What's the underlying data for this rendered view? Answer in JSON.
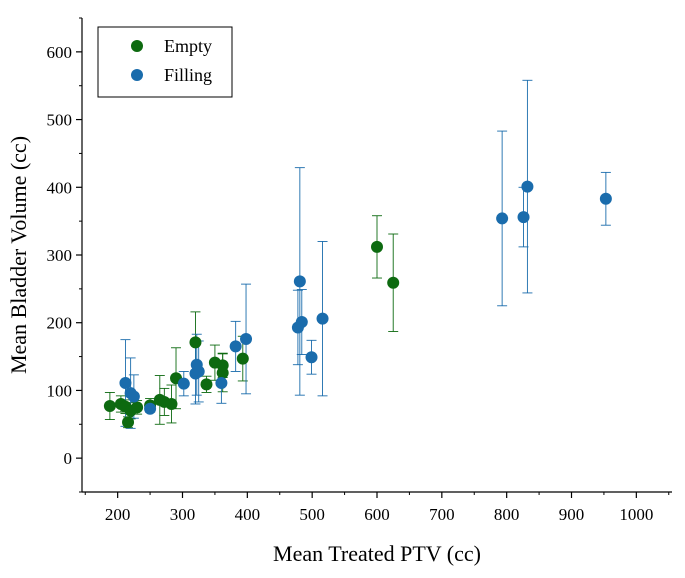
{
  "chart_data": {
    "type": "scatter",
    "title": "",
    "xlabel": "Mean Treated PTV (cc)",
    "ylabel": "Mean Bladder Volume (cc)",
    "xlim": [
      145,
      1055
    ],
    "ylim": [
      -50,
      650
    ],
    "xticks": [
      200,
      300,
      400,
      500,
      600,
      700,
      800,
      900,
      1000
    ],
    "yticks": [
      0,
      100,
      200,
      300,
      400,
      500,
      600
    ],
    "legend_position": "top-left",
    "colors": {
      "Empty": "#0d6a10",
      "Filling": "#1a6cac"
    },
    "series": [
      {
        "name": "Empty",
        "points": [
          {
            "x": 188,
            "y": 77,
            "err": 20
          },
          {
            "x": 205,
            "y": 80,
            "err": 12
          },
          {
            "x": 212,
            "y": 76,
            "err": 10
          },
          {
            "x": 216,
            "y": 53,
            "err": 8
          },
          {
            "x": 220,
            "y": 70,
            "err": 12
          },
          {
            "x": 230,
            "y": 75,
            "err": 10
          },
          {
            "x": 250,
            "y": 78,
            "err": 10
          },
          {
            "x": 265,
            "y": 86,
            "err": 36
          },
          {
            "x": 272,
            "y": 83,
            "err": 20
          },
          {
            "x": 283,
            "y": 80,
            "err": 28
          },
          {
            "x": 290,
            "y": 118,
            "err": 45
          },
          {
            "x": 320,
            "y": 171,
            "err": 45
          },
          {
            "x": 337,
            "y": 109,
            "err": 12
          },
          {
            "x": 350,
            "y": 141,
            "err": 26
          },
          {
            "x": 362,
            "y": 126,
            "err": 28
          },
          {
            "x": 362,
            "y": 137,
            "err": 18
          },
          {
            "x": 393,
            "y": 147,
            "err": 33
          },
          {
            "x": 600,
            "y": 312,
            "err": 46
          },
          {
            "x": 625,
            "y": 259,
            "err": 72
          }
        ]
      },
      {
        "name": "Filling",
        "points": [
          {
            "x": 212,
            "y": 111,
            "err": 64
          },
          {
            "x": 220,
            "y": 96,
            "err": 52
          },
          {
            "x": 225,
            "y": 91,
            "err": 32
          },
          {
            "x": 250,
            "y": 73,
            "err": 5
          },
          {
            "x": 302,
            "y": 110,
            "err": 18
          },
          {
            "x": 320,
            "y": 125,
            "err": 45
          },
          {
            "x": 322,
            "y": 138,
            "err": 45
          },
          {
            "x": 325,
            "y": 128,
            "err": 45
          },
          {
            "x": 360,
            "y": 111,
            "err": 30
          },
          {
            "x": 382,
            "y": 165,
            "err": 37
          },
          {
            "x": 398,
            "y": 176,
            "err": 81
          },
          {
            "x": 478,
            "y": 193,
            "err": 55
          },
          {
            "x": 481,
            "y": 261,
            "err": 168
          },
          {
            "x": 484,
            "y": 201,
            "err": 48
          },
          {
            "x": 499,
            "y": 149,
            "err": 25
          },
          {
            "x": 516,
            "y": 206,
            "err": 114
          },
          {
            "x": 793,
            "y": 354,
            "err": 129
          },
          {
            "x": 826,
            "y": 356,
            "err": 44
          },
          {
            "x": 832,
            "y": 401,
            "err": 157
          },
          {
            "x": 953,
            "y": 383,
            "err": 39
          }
        ]
      }
    ]
  }
}
